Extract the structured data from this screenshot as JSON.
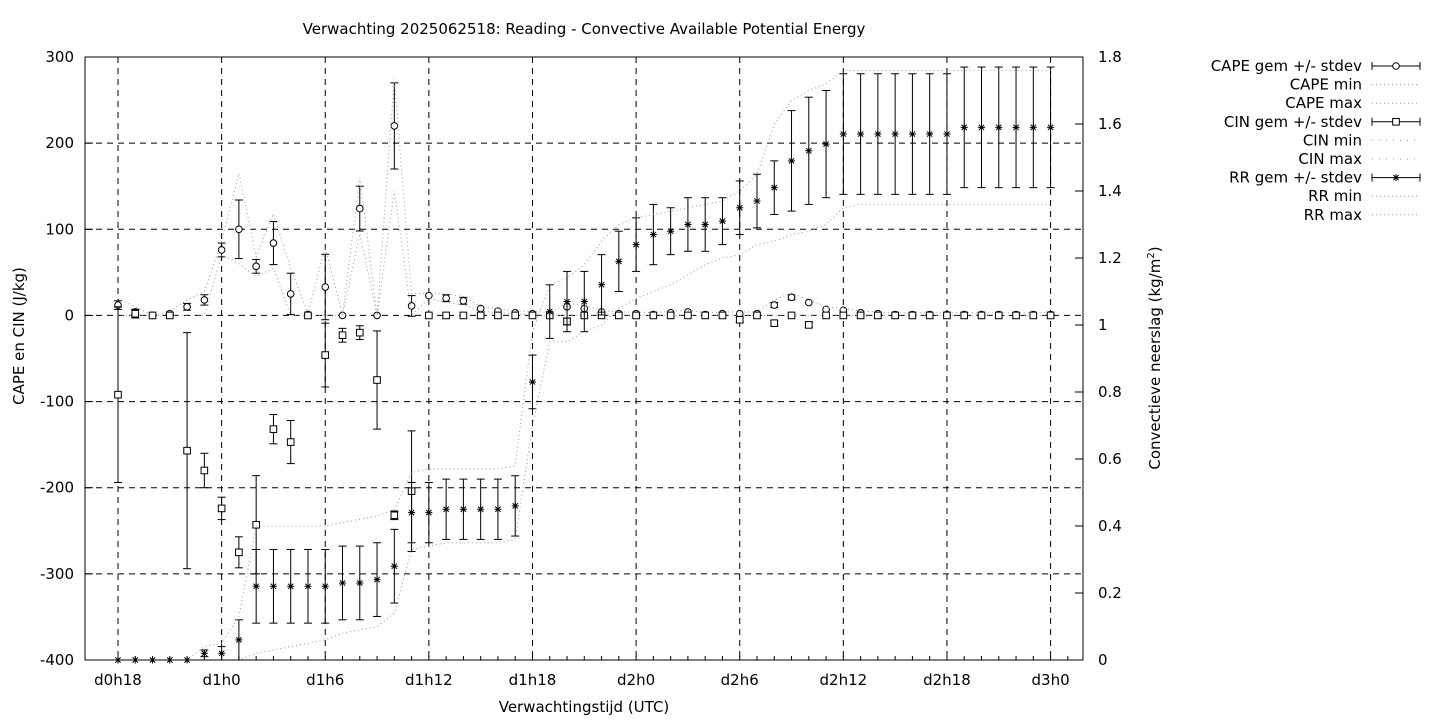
{
  "chart_data": {
    "type": "line",
    "title": "Verwachting 2025062518: Reading - Convective Available Potential Energy",
    "xlabel": "Verwachtingstijd (UTC)",
    "ylabel": "CAPE en CIN (J/kg)",
    "y2label_main": "Convectieve neerslag (kg/m",
    "y2label_sup": "2",
    "y2label_end": ")",
    "xlim": [
      0,
      57
    ],
    "ylim": [
      -400,
      300
    ],
    "y2lim": [
      0,
      1.8
    ],
    "grid": true,
    "legend_position": "top-right outside",
    "x_ticks": [
      {
        "x": 0,
        "label": "d0h18"
      },
      {
        "x": 6,
        "label": "d1h0"
      },
      {
        "x": 12,
        "label": "d1h6"
      },
      {
        "x": 18,
        "label": "d1h12"
      },
      {
        "x": 24,
        "label": "d1h18"
      },
      {
        "x": 30,
        "label": "d2h0"
      },
      {
        "x": 36,
        "label": "d2h6"
      },
      {
        "x": 42,
        "label": "d2h12"
      },
      {
        "x": 48,
        "label": "d2h18"
      },
      {
        "x": 54,
        "label": "d3h0"
      }
    ],
    "y_ticks": [
      {
        "v": 300,
        "label": "300"
      },
      {
        "v": 200,
        "label": "200"
      },
      {
        "v": 100,
        "label": "100"
      },
      {
        "v": 0,
        "label": "0"
      },
      {
        "v": -100,
        "label": "-100"
      },
      {
        "v": -200,
        "label": "-200"
      },
      {
        "v": -300,
        "label": "-300"
      },
      {
        "v": -400,
        "label": "-400"
      }
    ],
    "y2_ticks": [
      {
        "v": 1.8,
        "label": "1.8"
      },
      {
        "v": 1.6,
        "label": "1.6"
      },
      {
        "v": 1.4,
        "label": "1.4"
      },
      {
        "v": 1.2,
        "label": "1.2"
      },
      {
        "v": 1.0,
        "label": "1"
      },
      {
        "v": 0.8,
        "label": "0.8"
      },
      {
        "v": 0.6,
        "label": "0.6"
      },
      {
        "v": 0.4,
        "label": "0.4"
      },
      {
        "v": 0.2,
        "label": "0.2"
      },
      {
        "v": 0,
        "label": "0"
      }
    ],
    "legend": [
      {
        "label": "CAPE gem +/- stdev",
        "style": "errorbar-circle"
      },
      {
        "label": "CAPE min",
        "style": "dotted"
      },
      {
        "label": "CAPE max",
        "style": "dotted"
      },
      {
        "label": "CIN gem +/- stdev",
        "style": "errorbar-square"
      },
      {
        "label": "CIN min",
        "style": "dotted-sparse"
      },
      {
        "label": "CIN max",
        "style": "dotted-sparse"
      },
      {
        "label": "RR gem +/- stdev",
        "style": "errorbar-star"
      },
      {
        "label": "RR min",
        "style": "dotted"
      },
      {
        "label": "RR max",
        "style": "dotted"
      }
    ],
    "series": [
      {
        "name": "CAPE gem +/- stdev",
        "axis": "y1",
        "marker": "circle",
        "x": [
          0,
          1,
          2,
          3,
          4,
          5,
          6,
          7,
          8,
          9,
          10,
          11,
          12,
          13,
          14,
          15,
          16,
          17,
          18,
          19,
          20,
          21,
          22,
          23,
          24,
          25,
          26,
          27,
          28,
          29,
          30,
          31,
          32,
          33,
          34,
          35,
          36,
          37,
          38,
          39,
          40,
          41,
          42,
          43,
          44,
          45,
          46,
          47,
          48,
          49,
          50,
          51,
          52,
          53,
          54
        ],
        "mean": [
          12,
          4,
          0,
          2,
          10,
          18,
          76,
          100,
          57,
          84,
          25,
          1,
          33,
          0,
          124,
          0,
          220,
          11,
          23,
          20,
          17,
          8,
          5,
          3,
          2,
          1,
          10,
          8,
          4,
          2,
          2,
          1,
          3,
          4,
          1,
          2,
          2,
          2,
          12,
          21,
          15,
          7,
          6,
          3,
          2,
          1,
          1,
          1,
          1,
          1,
          1,
          1,
          1,
          1,
          1
        ],
        "stdev": [
          5,
          3,
          0,
          1,
          4,
          6,
          8,
          34,
          8,
          25,
          24,
          0,
          38,
          0,
          26,
          0,
          50,
          12,
          0,
          4,
          4,
          0,
          0,
          0,
          0,
          0,
          0,
          0,
          0,
          0,
          0,
          0,
          0,
          0,
          0,
          0,
          0,
          0,
          3,
          3,
          0,
          0,
          0,
          0,
          0,
          0,
          0,
          0,
          0,
          0,
          0,
          0,
          0,
          0,
          0
        ]
      },
      {
        "name": "CAPE min",
        "axis": "y1",
        "line": "dotted",
        "x": [
          0,
          1,
          2,
          3,
          4,
          5,
          6,
          7,
          8,
          9,
          10,
          11,
          12,
          13,
          14,
          15,
          16,
          17,
          18,
          19,
          20,
          21,
          22,
          23,
          24,
          25,
          26,
          27,
          28,
          29,
          30,
          31,
          32,
          33,
          34,
          35,
          36,
          37,
          38,
          39,
          40,
          41,
          42,
          43,
          44,
          45,
          46,
          47,
          48,
          49,
          50,
          51,
          52,
          53,
          54
        ],
        "values": [
          0,
          0,
          0,
          0,
          0,
          0,
          70,
          60,
          45,
          55,
          0,
          0,
          0,
          0,
          95,
          0,
          145,
          0,
          20,
          15,
          12,
          5,
          3,
          2,
          0,
          0,
          0,
          0,
          0,
          0,
          0,
          0,
          0,
          0,
          0,
          0,
          0,
          0,
          0,
          0,
          0,
          0,
          0,
          0,
          0,
          0,
          0,
          0,
          0,
          0,
          0,
          0,
          0,
          0,
          0
        ]
      },
      {
        "name": "CAPE max",
        "axis": "y1",
        "line": "dotted",
        "x": [
          0,
          1,
          2,
          3,
          4,
          5,
          6,
          7,
          8,
          9,
          10,
          11,
          12,
          13,
          14,
          15,
          16,
          17,
          18,
          19,
          20,
          21,
          22,
          23,
          24,
          25,
          26,
          27,
          28,
          29,
          30,
          31,
          32,
          33,
          34,
          35,
          36,
          37,
          38,
          39,
          40,
          41,
          42,
          43,
          44,
          45,
          46,
          47,
          48,
          49,
          50,
          51,
          52,
          53,
          54
        ],
        "values": [
          20,
          10,
          0,
          5,
          18,
          28,
          85,
          165,
          68,
          118,
          55,
          2,
          80,
          0,
          160,
          0,
          275,
          25,
          26,
          25,
          22,
          10,
          8,
          5,
          5,
          3,
          14,
          12,
          6,
          4,
          4,
          3,
          5,
          6,
          3,
          4,
          4,
          4,
          18,
          26,
          18,
          10,
          8,
          5,
          4,
          3,
          3,
          3,
          3,
          3,
          3,
          3,
          3,
          3,
          3
        ]
      },
      {
        "name": "CIN gem +/- stdev",
        "axis": "y1",
        "marker": "square",
        "x": [
          0,
          1,
          2,
          3,
          4,
          5,
          6,
          7,
          8,
          9,
          10,
          11,
          12,
          13,
          14,
          15,
          16,
          17,
          18,
          19,
          20,
          21,
          22,
          23,
          24,
          25,
          26,
          27,
          28,
          29,
          30,
          31,
          32,
          33,
          34,
          35,
          36,
          37,
          38,
          39,
          40,
          41,
          42,
          43,
          44,
          45,
          46,
          47,
          48,
          49,
          50,
          51,
          52,
          53,
          54
        ],
        "mean": [
          -92,
          2,
          0,
          0,
          -157,
          -180,
          -224,
          -275,
          -243,
          -132,
          -147,
          0,
          -46,
          -23,
          -20,
          -75,
          -232,
          -204,
          0,
          0,
          0,
          0,
          0,
          0,
          0,
          0,
          -7,
          0,
          0,
          0,
          0,
          0,
          0,
          0,
          0,
          0,
          -5,
          0,
          -9,
          0,
          -11,
          0,
          0,
          0,
          0,
          0,
          0,
          0,
          0,
          0,
          0,
          0,
          0,
          0,
          0
        ],
        "stdev": [
          102,
          5,
          0,
          0,
          137,
          20,
          13,
          18,
          57,
          17,
          25,
          0,
          37,
          8,
          8,
          57,
          5,
          70,
          0,
          0,
          0,
          0,
          0,
          0,
          0,
          0,
          4,
          0,
          0,
          0,
          0,
          0,
          0,
          0,
          0,
          0,
          3,
          0,
          3,
          0,
          3,
          0,
          0,
          0,
          0,
          0,
          0,
          0,
          0,
          0,
          0,
          0,
          0,
          0,
          0
        ]
      },
      {
        "name": "RR gem +/- stdev",
        "axis": "y2",
        "marker": "star",
        "x": [
          0,
          1,
          2,
          3,
          4,
          5,
          6,
          7,
          8,
          9,
          10,
          11,
          12,
          13,
          14,
          15,
          16,
          17,
          18,
          19,
          20,
          21,
          22,
          23,
          24,
          25,
          26,
          27,
          28,
          29,
          30,
          31,
          32,
          33,
          34,
          35,
          36,
          37,
          38,
          39,
          40,
          41,
          42,
          43,
          44,
          45,
          46,
          47,
          48,
          49,
          50,
          51,
          52,
          53,
          54
        ],
        "mean": [
          0,
          0,
          0,
          0,
          0,
          0.02,
          0.02,
          0.06,
          0.22,
          0.22,
          0.22,
          0.22,
          0.22,
          0.23,
          0.23,
          0.24,
          0.28,
          0.44,
          0.44,
          0.45,
          0.45,
          0.45,
          0.45,
          0.46,
          0.83,
          1.04,
          1.07,
          1.07,
          1.12,
          1.19,
          1.24,
          1.27,
          1.28,
          1.3,
          1.3,
          1.31,
          1.35,
          1.37,
          1.41,
          1.49,
          1.52,
          1.54,
          1.57,
          1.57,
          1.57,
          1.57,
          1.57,
          1.57,
          1.57,
          1.59,
          1.59,
          1.59,
          1.59,
          1.59,
          1.59
        ],
        "stdev": [
          0,
          0,
          0,
          0,
          0,
          0.01,
          0.02,
          0.06,
          0.11,
          0.11,
          0.11,
          0.11,
          0.11,
          0.11,
          0.11,
          0.11,
          0.11,
          0.09,
          0.09,
          0.09,
          0.09,
          0.09,
          0.09,
          0.09,
          0.08,
          0.08,
          0.09,
          0.09,
          0.09,
          0.09,
          0.08,
          0.09,
          0.07,
          0.08,
          0.08,
          0.07,
          0.08,
          0.08,
          0.08,
          0.15,
          0.16,
          0.16,
          0.18,
          0.18,
          0.18,
          0.18,
          0.18,
          0.18,
          0.18,
          0.18,
          0.18,
          0.18,
          0.18,
          0.18,
          0.18
        ]
      },
      {
        "name": "RR min",
        "axis": "y2",
        "line": "dotted",
        "x": [
          0,
          1,
          2,
          3,
          4,
          5,
          6,
          7,
          8,
          9,
          10,
          11,
          12,
          13,
          14,
          15,
          16,
          17,
          18,
          19,
          20,
          21,
          22,
          23,
          24,
          25,
          26,
          27,
          28,
          29,
          30,
          31,
          32,
          33,
          34,
          35,
          36,
          37,
          38,
          39,
          40,
          41,
          42,
          43,
          44,
          45,
          46,
          47,
          48,
          49,
          50,
          51,
          52,
          53,
          54
        ],
        "values": [
          0,
          0,
          0,
          0,
          0,
          0,
          0,
          0,
          0.02,
          0.03,
          0.04,
          0.05,
          0.06,
          0.08,
          0.09,
          0.1,
          0.14,
          0.33,
          0.34,
          0.35,
          0.35,
          0.35,
          0.35,
          0.36,
          0.7,
          0.95,
          0.95,
          0.98,
          1.0,
          1.05,
          1.08,
          1.1,
          1.12,
          1.15,
          1.18,
          1.2,
          1.21,
          1.24,
          1.25,
          1.27,
          1.28,
          1.3,
          1.35,
          1.36,
          1.36,
          1.36,
          1.36,
          1.36,
          1.36,
          1.36,
          1.36,
          1.36,
          1.36,
          1.36,
          1.36
        ]
      },
      {
        "name": "RR max",
        "axis": "y2",
        "line": "dotted",
        "x": [
          0,
          1,
          2,
          3,
          4,
          5,
          6,
          7,
          8,
          9,
          10,
          11,
          12,
          13,
          14,
          15,
          16,
          17,
          18,
          19,
          20,
          21,
          22,
          23,
          24,
          25,
          26,
          27,
          28,
          29,
          30,
          31,
          32,
          33,
          34,
          35,
          36,
          37,
          38,
          39,
          40,
          41,
          42,
          43,
          44,
          45,
          46,
          47,
          48,
          49,
          50,
          51,
          52,
          53,
          54
        ],
        "values": [
          0,
          0,
          0,
          0,
          0,
          0.04,
          0.05,
          0.13,
          0.4,
          0.4,
          0.4,
          0.4,
          0.4,
          0.41,
          0.42,
          0.43,
          0.45,
          0.56,
          0.57,
          0.57,
          0.57,
          0.57,
          0.57,
          0.58,
          0.98,
          1.12,
          1.14,
          1.18,
          1.25,
          1.3,
          1.32,
          1.33,
          1.34,
          1.35,
          1.36,
          1.37,
          1.4,
          1.45,
          1.6,
          1.67,
          1.7,
          1.72,
          1.76,
          1.76,
          1.76,
          1.76,
          1.76,
          1.76,
          1.76,
          1.76,
          1.76,
          1.76,
          1.76,
          1.76,
          1.76
        ]
      }
    ]
  }
}
